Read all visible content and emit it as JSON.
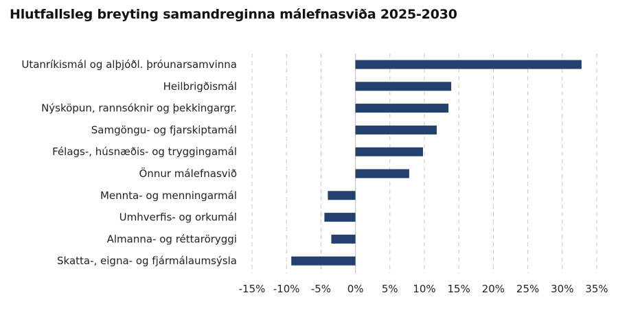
{
  "chart_data": {
    "type": "bar",
    "orientation": "horizontal",
    "title": "Hlutfallsleg breyting samandreginna málefnasviða 2025-2030",
    "categories": [
      "Utanríkismál og alþjóðl. þróunarsamvinna",
      "Heilbrigðismál",
      "Nýsköpun, rannsóknir og þekkingargr.",
      "Samgöngu- og fjarskiptamál",
      "Félags-, húsnæðis- og tryggingamál",
      "Önnur málefnasvið",
      "Mennta- og menningarmál",
      "Umhverfis- og orkumál",
      "Almanna- og réttaröryggi",
      "Skatta-, eigna- og fjármálaumsýsla"
    ],
    "values": [
      32.8,
      13.9,
      13.5,
      11.8,
      9.8,
      7.8,
      -4.0,
      -4.5,
      -3.5,
      -9.3
    ],
    "xlim": [
      -15,
      35
    ],
    "xticks": [
      -15,
      -10,
      -5,
      0,
      5,
      10,
      15,
      20,
      25,
      30,
      35
    ],
    "xtick_labels": [
      "-15%",
      "-10%",
      "-5%",
      "0%",
      "5%",
      "10%",
      "15%",
      "20%",
      "25%",
      "30%",
      "35%"
    ],
    "grid": "vertical-dashed",
    "bar_color": "#24406F",
    "grid_color": "#C8C8C8"
  }
}
